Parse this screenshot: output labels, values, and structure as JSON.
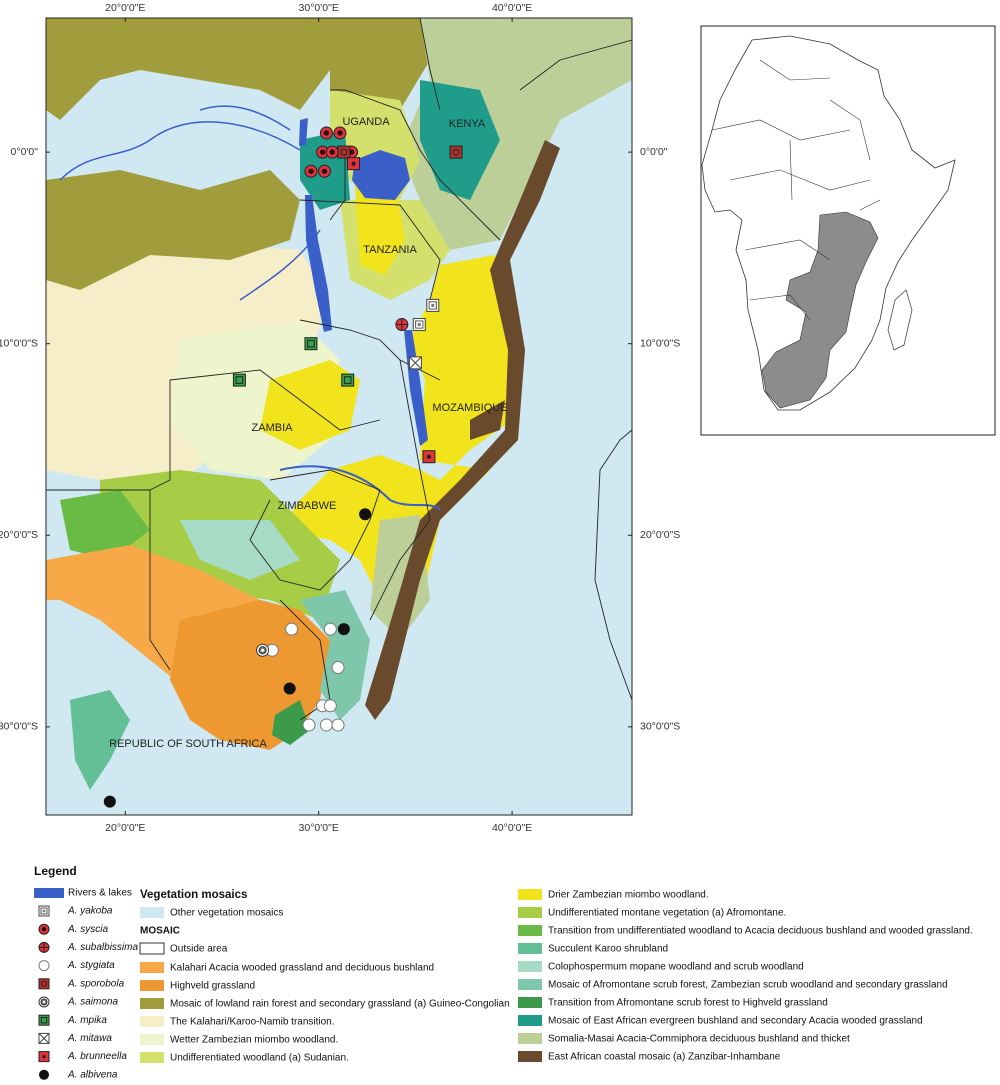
{
  "map": {
    "lon_lim": [
      15.9,
      46.2
    ],
    "lat_lim": [
      7.0,
      -34.6
    ],
    "lon_ticks": [
      {
        "value": 20,
        "label": "20°0'0\"E"
      },
      {
        "value": 30,
        "label": "30°0'0\"E"
      },
      {
        "value": 40,
        "label": "40°0'0\"E"
      }
    ],
    "lat_ticks": [
      {
        "value": 0,
        "label": "0°0'0\""
      },
      {
        "value": -10,
        "label": "10°0'0\"S"
      },
      {
        "value": -20,
        "label": "20°0'0\"S"
      },
      {
        "value": -30,
        "label": "30°0'0\"S"
      }
    ],
    "countries": [
      "UGANDA",
      "KENYA",
      "TANZANIA",
      "MOZAMBIQUE",
      "ZAMBIA",
      "ZIMBABWE",
      "REPUBLIC OF SOUTH AFRICA"
    ]
  },
  "legend": {
    "title": "Legend",
    "rivers": "Rivers & lakes",
    "rivers_color": "#3a5fc8",
    "species": [
      {
        "name": "A. yakoba",
        "points": [
          [
            35.9,
            -8.0
          ],
          [
            35.2,
            -9.0
          ]
        ]
      },
      {
        "name": "A. syscia",
        "points": [
          [
            30.4,
            1.0
          ],
          [
            31.1,
            1.0
          ],
          [
            30.2,
            0.0
          ],
          [
            30.7,
            0.0
          ],
          [
            31.7,
            0.0
          ],
          [
            29.6,
            -1.0
          ],
          [
            30.3,
            -1.0
          ]
        ]
      },
      {
        "name": "A. subalbissima",
        "points": [
          [
            34.3,
            -9.0
          ]
        ]
      },
      {
        "name": "A. stygiata",
        "points": [
          [
            28.6,
            -24.9
          ],
          [
            30.6,
            -24.9
          ],
          [
            27.6,
            -26.0
          ],
          [
            31.0,
            -26.9
          ],
          [
            30.2,
            -28.9
          ],
          [
            30.6,
            -28.9
          ],
          [
            29.5,
            -29.9
          ],
          [
            30.4,
            -29.9
          ],
          [
            31.0,
            -29.9
          ]
        ]
      },
      {
        "name": "A. sporobola",
        "points": [
          [
            31.3,
            0.0
          ],
          [
            37.1,
            0.0
          ]
        ]
      },
      {
        "name": "A. saimona",
        "points": [
          [
            27.1,
            -26.0
          ]
        ]
      },
      {
        "name": "A. mpika",
        "points": [
          [
            29.6,
            -10.0
          ],
          [
            25.9,
            -11.9
          ],
          [
            31.5,
            -11.9
          ]
        ]
      },
      {
        "name": "A. mitawa",
        "points": [
          [
            35.0,
            -11.0
          ]
        ]
      },
      {
        "name": "A. brunneella",
        "points": [
          [
            35.7,
            -15.9
          ],
          [
            31.8,
            -0.6
          ]
        ]
      },
      {
        "name": "A. albivena",
        "points": [
          [
            32.4,
            -18.9
          ],
          [
            31.3,
            -24.9
          ],
          [
            28.5,
            -28.0
          ],
          [
            19.2,
            -33.9
          ]
        ]
      }
    ],
    "vegetation_title": "Vegetation mosaics",
    "other": {
      "name": "Other vegetation mosaics",
      "color": "#cfe8f2"
    },
    "mosaic_title": "MOSAIC",
    "outside": {
      "name": "Outside area",
      "color": "#ffffff"
    },
    "classes": [
      {
        "name": "Kalahari Acacia wooded grassland and deciduous bushland",
        "color": "#f7a847"
      },
      {
        "name": "Highveld grassland",
        "color": "#ee9832"
      },
      {
        "name": "Mosaic of lowland rain forest and secondary grassland (a) Guineo-Congolian",
        "color": "#a19c3c"
      },
      {
        "name": "The Kalahari/Karoo-Namib transition.",
        "color": "#f6eec8"
      },
      {
        "name": "Wetter Zambezian miombo woodland.",
        "color": "#eef4cc"
      },
      {
        "name": "Undifferentiated woodland (a) Sudanian.",
        "color": "#d3e06c"
      },
      {
        "name": "Drier Zambezian miombo woodland.",
        "color": "#f1e31c"
      },
      {
        "name": "Undifferentiated montane vegetation (a) Afromontane.",
        "color": "#a6cd45"
      },
      {
        "name": "Transition from undifferentiated woodland to Acacia deciduous bushland and wooded grassland.",
        "color": "#6abb46"
      },
      {
        "name": "Succulent Karoo shrubland",
        "color": "#63c096"
      },
      {
        "name": "Colophospermum mopane woodland and scrub woodland",
        "color": "#a8dbc5"
      },
      {
        "name": "Mosaic of Afromontane scrub forest, Zambezian scrub woodland and secondary grassland",
        "color": "#7ec7aa"
      },
      {
        "name": "Transition from Afromontane scrub forest to Highveld grassland",
        "color": "#3e9a4b"
      },
      {
        "name": "Mosaic of East African evergreen bushland and secondary Acacia wooded grassland",
        "color": "#1f9d8a"
      },
      {
        "name": "Somalia-Masai Acacia-Commiphora deciduous bushland and thicket",
        "color": "#bdcf98"
      },
      {
        "name": "East African coastal mosaic (a) Zanzibar-Inhambane",
        "color": "#6a4a2c"
      }
    ]
  }
}
